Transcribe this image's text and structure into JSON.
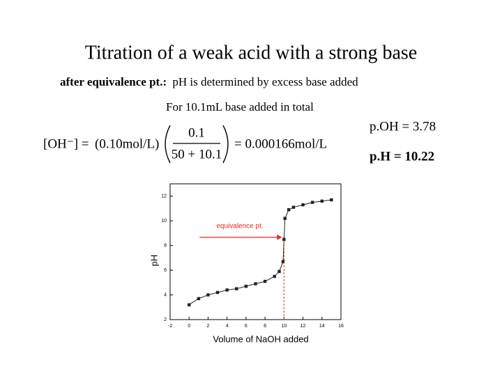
{
  "title": "Titration of a weak acid with a strong base",
  "subtitle_bold": "after equivalence pt.:",
  "subtitle": "pH is determined by excess base added",
  "note": "For 10.1mL base added in total",
  "equation": {
    "lhs": "[OH⁻] =",
    "conc": "(0.10mol/L)",
    "numerator": "0.1",
    "denominator": "50 + 10.1",
    "rhs": "= 0.000166mol/L"
  },
  "poh": "p.OH = 3.78",
  "ph": "p.H = 10.22",
  "chart_data": {
    "type": "line",
    "xlabel": "Volume of NaOH added",
    "ylabel": "pH",
    "annotation": "equivalence pt.",
    "x": [
      0,
      1,
      2,
      3,
      4,
      5,
      6,
      7,
      8,
      9,
      9.5,
      9.9,
      10,
      10.1,
      10.5,
      11,
      12,
      13,
      14,
      15
    ],
    "series": [
      {
        "name": "pH",
        "color": "#222222",
        "values": [
          3.2,
          3.7,
          4.0,
          4.2,
          4.4,
          4.5,
          4.7,
          4.9,
          5.1,
          5.5,
          5.9,
          6.7,
          8.5,
          10.2,
          10.9,
          11.1,
          11.3,
          11.5,
          11.6,
          11.7
        ]
      }
    ],
    "annotation_color": "#e8291c",
    "xlim": [
      -2,
      16
    ],
    "ylim": [
      2,
      13
    ],
    "xticks": [
      -2,
      0,
      2,
      4,
      6,
      8,
      10,
      12,
      14,
      16
    ],
    "yticks": [
      2,
      4,
      6,
      8,
      10,
      12
    ]
  }
}
